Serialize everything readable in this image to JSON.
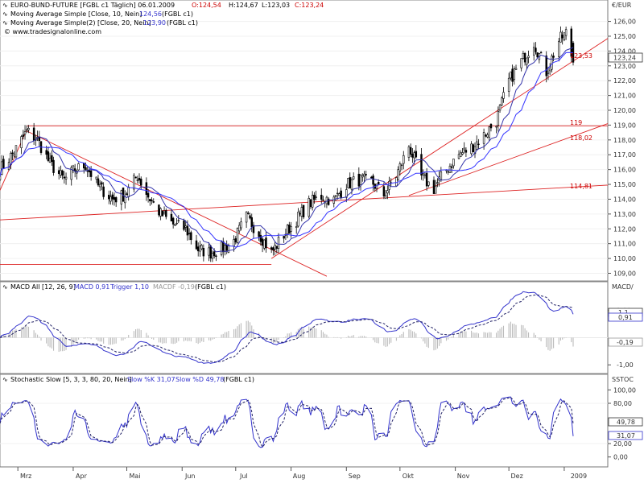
{
  "panels": {
    "price": {
      "title": "EURO-BUND-FUTURE [FGBL c1  Täglich] 06.01.2009",
      "ohlc": {
        "o": "O:124,54",
        "h": "H:124,67",
        "l": "L:123,03",
        "c": "C:123,24"
      },
      "ma10": {
        "label": "Moving Average Simple [Close, 10, Nein]",
        "value": "124,56",
        "suffix": "(FGBL c1)"
      },
      "ma20": {
        "label": "Moving Average Simple(2) [Close, 20, Nein]",
        "value": "123,90",
        "suffix": "(FGBL c1)"
      },
      "watermark": "© www.tradesignalonline.com",
      "unit": "€/EUR",
      "last_price_tag": "123,24",
      "annotations": {
        "a1": "123,53",
        "a2": "119",
        "a3": "118,02",
        "a4": "114,81"
      }
    },
    "macd": {
      "title": "MACD All [12, 26, 9]",
      "macd": "MACD 0,91",
      "trigger": "Trigger 1,10",
      "macdf": "MACDF -0,19",
      "suffix": "(FGBL c1)",
      "unit": "MACD/",
      "tags": {
        "trigger": "1,1",
        "macd": "0,91",
        "hist": "-0,19"
      }
    },
    "stoch": {
      "title": "Stochastic Slow [5, 3, 3, 80, 20, Nein]",
      "slow_k": "Slow %K 31,07",
      "slow_d": "Slow %D 49,78",
      "suffix": "(FGBL c1)",
      "unit": "SSTOC",
      "tags": {
        "d": "49,78",
        "k": "31,07"
      }
    }
  },
  "x_axis": {
    "labels": [
      "Mrz",
      "Apr",
      "Mai",
      "Jun",
      "Jul",
      "Aug",
      "Sep",
      "Okt",
      "Nov",
      "Dez"
    ],
    "year": "2009"
  },
  "chart_data": [
    {
      "type": "candlestick",
      "title": "EURO-BUND-FUTURE [FGBL c1  Täglich] 06.01.2009",
      "ylabel": "€/EUR",
      "ylim": [
        108.7,
        126.9
      ],
      "yticks": [
        "109,00",
        "110,00",
        "111,00",
        "112,00",
        "113,00",
        "114,00",
        "115,00",
        "116,00",
        "117,00",
        "118,00",
        "119,00",
        "120,00",
        "121,00",
        "122,00",
        "123,00",
        "124,00",
        "125,00",
        "126,00"
      ],
      "x_months": [
        "Mrz",
        "Apr",
        "Mai",
        "Jun",
        "Jul",
        "Aug",
        "Sep",
        "Okt",
        "Nov",
        "Dez"
      ],
      "close_anchors_2008": [
        [
          "2008-02-20",
          116.0
        ],
        [
          "2008-02-28",
          117.2
        ],
        [
          "2008-03-06",
          118.6
        ],
        [
          "2008-03-12",
          118.0
        ],
        [
          "2008-03-19",
          116.4
        ],
        [
          "2008-03-27",
          115.3
        ],
        [
          "2008-04-02",
          116.0
        ],
        [
          "2008-04-08",
          116.3
        ],
        [
          "2008-04-15",
          114.9
        ],
        [
          "2008-04-23",
          114.0
        ],
        [
          "2008-04-30",
          114.3
        ],
        [
          "2008-05-07",
          115.6
        ],
        [
          "2008-05-13",
          114.2
        ],
        [
          "2008-05-20",
          113.0
        ],
        [
          "2008-05-27",
          112.3
        ],
        [
          "2008-06-03",
          112.0
        ],
        [
          "2008-06-10",
          110.6
        ],
        [
          "2008-06-17",
          110.4
        ],
        [
          "2008-06-24",
          110.7
        ],
        [
          "2008-06-30",
          111.2
        ],
        [
          "2008-07-07",
          112.8
        ],
        [
          "2008-07-14",
          111.7
        ],
        [
          "2008-07-21",
          110.4
        ],
        [
          "2008-07-28",
          111.6
        ],
        [
          "2008-08-04",
          112.6
        ],
        [
          "2008-08-11",
          113.7
        ],
        [
          "2008-08-18",
          114.2
        ],
        [
          "2008-08-25",
          113.9
        ],
        [
          "2008-09-01",
          115.0
        ],
        [
          "2008-09-08",
          115.3
        ],
        [
          "2008-09-15",
          115.2
        ],
        [
          "2008-09-22",
          114.3
        ],
        [
          "2008-09-29",
          115.6
        ],
        [
          "2008-10-06",
          117.6
        ],
        [
          "2008-10-13",
          115.5
        ],
        [
          "2008-10-20",
          114.7
        ],
        [
          "2008-10-27",
          116.0
        ],
        [
          "2008-11-03",
          117.0
        ],
        [
          "2008-11-10",
          117.5
        ],
        [
          "2008-11-17",
          118.3
        ],
        [
          "2008-11-24",
          119.3
        ],
        [
          "2008-12-01",
          122.0
        ],
        [
          "2008-12-08",
          123.3
        ],
        [
          "2008-12-15",
          124.6
        ],
        [
          "2008-12-22",
          122.6
        ],
        [
          "2008-12-29",
          124.7
        ],
        [
          "2009-01-02",
          125.2
        ],
        [
          "2009-01-06",
          123.24
        ]
      ],
      "series": [
        {
          "name": "Moving Average Simple [Close, 10, Nein]",
          "last": 124.56
        },
        {
          "name": "Moving Average Simple(2) [Close, 20, Nein]",
          "last": 123.9
        }
      ],
      "annotations": [
        "123,53",
        "119",
        "118,02",
        "114,81"
      ]
    },
    {
      "type": "line",
      "title": "MACD All [12, 26, 9]",
      "ylim": [
        -1.2,
        1.7
      ],
      "yticks": [
        "1,00",
        "-1,00"
      ],
      "series": [
        {
          "name": "MACD",
          "last": 0.91
        },
        {
          "name": "Trigger",
          "last": 1.1
        },
        {
          "name": "MACDF",
          "last": -0.19
        }
      ]
    },
    {
      "type": "line",
      "title": "Stochastic Slow [5, 3, 3, 80, 20, Nein]",
      "ylim": [
        -10,
        110
      ],
      "yticks": [
        "0,00",
        "20,00",
        "80,00",
        "100,00"
      ],
      "series": [
        {
          "name": "Slow %K",
          "last": 31.07
        },
        {
          "name": "Slow %D",
          "last": 49.78
        }
      ]
    }
  ],
  "colors": {
    "up": "#000000",
    "down": "#000000",
    "ma10": "#3333aa",
    "ma20": "#3333ff",
    "trend": "#dd2222",
    "macd_line": "#3333cc",
    "hist": "#bbbbbb",
    "red_text": "#cc0000",
    "blue_text": "#3333cc"
  }
}
